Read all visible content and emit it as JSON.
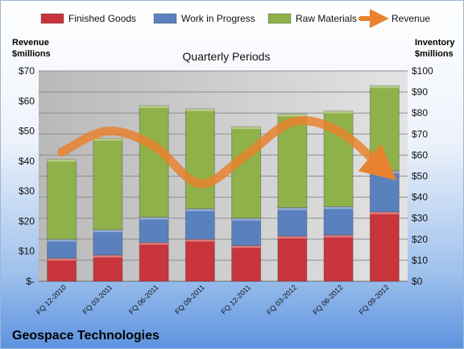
{
  "company_name": "Geospace Technologies",
  "chart_data": {
    "type": "bar",
    "stacked": true,
    "title": "Quarterly Periods",
    "left_axis_label": [
      "Revenue",
      "$millions"
    ],
    "right_axis_label": [
      "Inventory",
      "$millions"
    ],
    "categories": [
      "FQ 12-2010",
      "FQ 03-2011",
      "FQ 06-2011",
      "FQ 09-2011",
      "FQ 12-2011",
      "FQ 03-2012",
      "FQ 06-2012",
      "FQ 09-2012"
    ],
    "left_ticks": [
      "$-",
      "$10",
      "$20",
      "$30",
      "$40",
      "$50",
      "$60",
      "$70"
    ],
    "right_ticks": [
      "$0",
      "$10",
      "$20",
      "$30",
      "$40",
      "$50",
      "$60",
      "$70",
      "$80",
      "$90",
      "$100"
    ],
    "left_ylim": [
      0,
      70
    ],
    "right_ylim": [
      0,
      100
    ],
    "legend_position": "top",
    "grid": true,
    "series": [
      {
        "name": "Finished Goods",
        "axis": "right",
        "color": "#c8353a",
        "values": [
          11,
          12.5,
          18.5,
          20,
          17,
          21.5,
          22,
          33
        ]
      },
      {
        "name": "Work in Progress",
        "axis": "right",
        "color": "#5a81be",
        "values": [
          9,
          12,
          12,
          14.5,
          13,
          13.5,
          13.5,
          19.5
        ]
      },
      {
        "name": "Raw Materials",
        "axis": "right",
        "color": "#8fb149",
        "values": [
          38,
          43.5,
          53,
          47.5,
          43.5,
          44.5,
          45.5,
          40.5
        ]
      },
      {
        "name": "Revenue",
        "axis": "left",
        "type": "line",
        "color": "#e8822f",
        "values": [
          43,
          50,
          45,
          32.5,
          42,
          53,
          50,
          37
        ]
      }
    ]
  }
}
